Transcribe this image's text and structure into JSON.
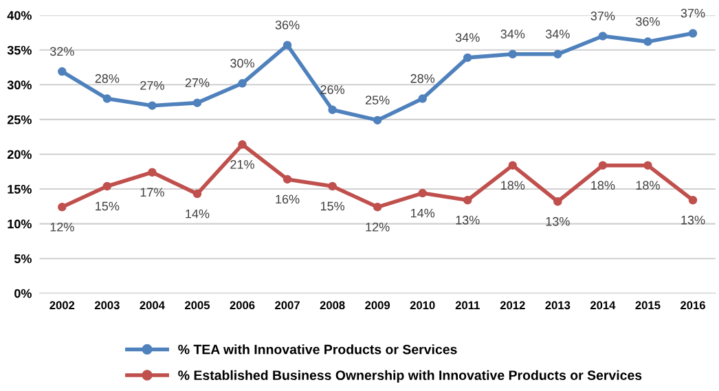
{
  "chart_data": {
    "type": "line",
    "categories": [
      "2002",
      "2003",
      "2004",
      "2005",
      "2006",
      "2007",
      "2008",
      "2009",
      "2010",
      "2011",
      "2012",
      "2013",
      "2014",
      "2015",
      "2016"
    ],
    "series": [
      {
        "name": "% TEA with Innovative Products or Services",
        "color": "#4f81bd",
        "values": [
          31.9,
          28.0,
          27.0,
          27.4,
          30.2,
          35.7,
          26.4,
          24.9,
          28.0,
          33.9,
          34.4,
          34.4,
          37.0,
          36.2,
          37.4
        ],
        "value_labels": [
          "32%",
          "28%",
          "27%",
          "27%",
          "30%",
          "36%",
          "26%",
          "25%",
          "28%",
          "34%",
          "34%",
          "34%",
          "37%",
          "36%",
          "37%"
        ]
      },
      {
        "name": "% Established Business Ownership with Innovative Products or Services",
        "color": "#c0504d",
        "values": [
          12.4,
          15.4,
          17.4,
          14.3,
          21.4,
          16.4,
          15.4,
          12.4,
          14.4,
          13.4,
          18.4,
          13.2,
          18.4,
          18.4,
          13.4
        ],
        "value_labels": [
          "12%",
          "15%",
          "17%",
          "14%",
          "21%",
          "16%",
          "15%",
          "12%",
          "14%",
          "13%",
          "18%",
          "13%",
          "18%",
          "18%",
          "13%"
        ]
      }
    ],
    "ylim": [
      0,
      40
    ],
    "yticks": [
      {
        "value": 0,
        "label": "0%"
      },
      {
        "value": 5,
        "label": "5%"
      },
      {
        "value": 10,
        "label": "10%"
      },
      {
        "value": 15,
        "label": "15%"
      },
      {
        "value": 20,
        "label": "20%"
      },
      {
        "value": 25,
        "label": "25%"
      },
      {
        "value": 30,
        "label": "30%"
      },
      {
        "value": 35,
        "label": "35%"
      },
      {
        "value": 40,
        "label": "40%"
      }
    ],
    "grid": "y",
    "legend": "bottom",
    "marker": "circle",
    "line_style": "solid"
  }
}
